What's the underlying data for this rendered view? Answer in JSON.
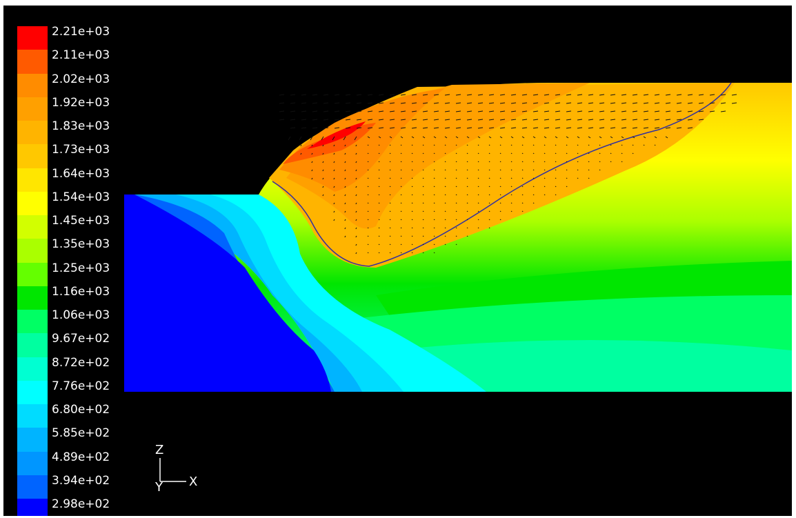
{
  "chart_data": {
    "type": "heatmap",
    "title": "",
    "colorbar": {
      "labels": [
        "2.21e+03",
        "2.11e+03",
        "2.02e+03",
        "1.92e+03",
        "1.83e+03",
        "1.73e+03",
        "1.64e+03",
        "1.54e+03",
        "1.45e+03",
        "1.35e+03",
        "1.25e+03",
        "1.16e+03",
        "1.06e+03",
        "9.67e+02",
        "8.72e+02",
        "7.76e+02",
        "6.80e+02",
        "5.85e+02",
        "4.89e+02",
        "3.94e+02",
        "2.98e+02"
      ],
      "values": [
        2210,
        2110,
        2020,
        1920,
        1830,
        1730,
        1640,
        1540,
        1450,
        1350,
        1250,
        1160,
        1060,
        967,
        872,
        776,
        680,
        585,
        489,
        394,
        298
      ],
      "colors": [
        "#ff0000",
        "#ff5a00",
        "#ff8c00",
        "#ffa000",
        "#ffb400",
        "#ffc800",
        "#ffe600",
        "#ffff00",
        "#d2ff00",
        "#aaff00",
        "#64ff00",
        "#00e600",
        "#00ff64",
        "#00ffa0",
        "#00ffd2",
        "#00ffff",
        "#00dcff",
        "#00b4ff",
        "#0096ff",
        "#0064ff",
        "#0000ff"
      ]
    },
    "axis_triad": {
      "vertical": "Z",
      "horizontal": "X",
      "out_of_plane": "Y"
    }
  }
}
